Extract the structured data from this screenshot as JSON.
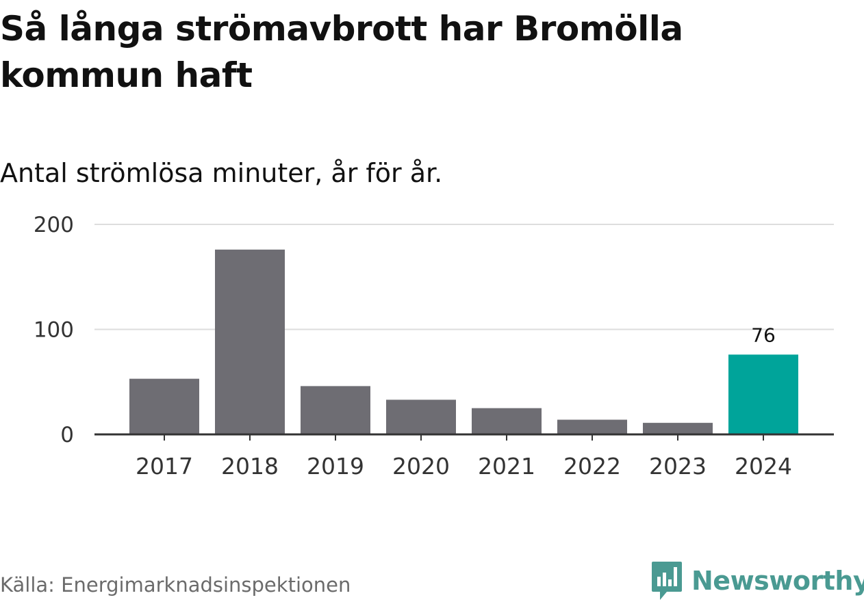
{
  "title": "Så långa strömavbrott har Bromölla kommun haft",
  "subtitle": "Antal strömlösa minuter, år för år.",
  "source": "Källa: Energimarknadsinspektionen",
  "brand": {
    "name": "Newsworthy",
    "icon": "newsworthy-logo-icon",
    "color": "#4a9a92"
  },
  "colors": {
    "bar": "#6e6d73",
    "highlight": "#00a49a",
    "grid": "#dddddd",
    "axis": "#333333"
  },
  "chart_data": {
    "type": "bar",
    "categories": [
      "2017",
      "2018",
      "2019",
      "2020",
      "2021",
      "2022",
      "2023",
      "2024"
    ],
    "values": [
      53,
      176,
      46,
      33,
      25,
      14,
      11,
      76
    ],
    "highlight_index": 7,
    "data_labels": [
      null,
      null,
      null,
      null,
      null,
      null,
      null,
      "76"
    ],
    "yticks": [
      0,
      100,
      200
    ],
    "ylim": [
      0,
      200
    ],
    "grid": true,
    "xlabel": "",
    "ylabel": ""
  }
}
